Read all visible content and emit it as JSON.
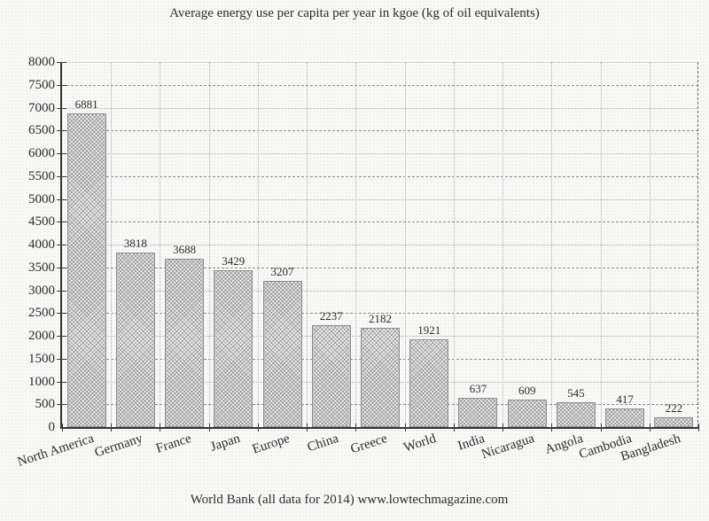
{
  "chart_data": {
    "type": "bar",
    "title": "Average energy use per capita per year in kgoe (kg of oil equivalents)",
    "source": "World Bank (all data for 2014) www.lowtechmagazine.com",
    "categories": [
      "North America",
      "Germany",
      "France",
      "Japan",
      "Europe",
      "China",
      "Greece",
      "World",
      "India",
      "Nicaragua",
      "Angola",
      "Cambodia",
      "Bangladesh"
    ],
    "values": [
      6881,
      3818,
      3688,
      3429,
      3207,
      2237,
      2182,
      1921,
      637,
      609,
      545,
      417,
      222
    ],
    "bar_value_labels": [
      "6881",
      "3818",
      "3688",
      "3429",
      "3207",
      "2237",
      "2182",
      "1921",
      "637",
      "609",
      "545",
      "417",
      "222"
    ],
    "xlabel": "",
    "ylabel": "",
    "ylim": [
      0,
      8000
    ],
    "ytick_step": 500,
    "grid": "both",
    "legend": "none"
  },
  "style": {
    "background": "#f8f8f6",
    "text_color": "#2d2d2d",
    "axis_color": "#343434",
    "grid_minor": "#b2b2b2",
    "grid_major": "#8e8e8e",
    "bar_fill": "#efefef",
    "bar_hatch": "#6e6e6e",
    "bar_border": "#8f8f8f"
  }
}
